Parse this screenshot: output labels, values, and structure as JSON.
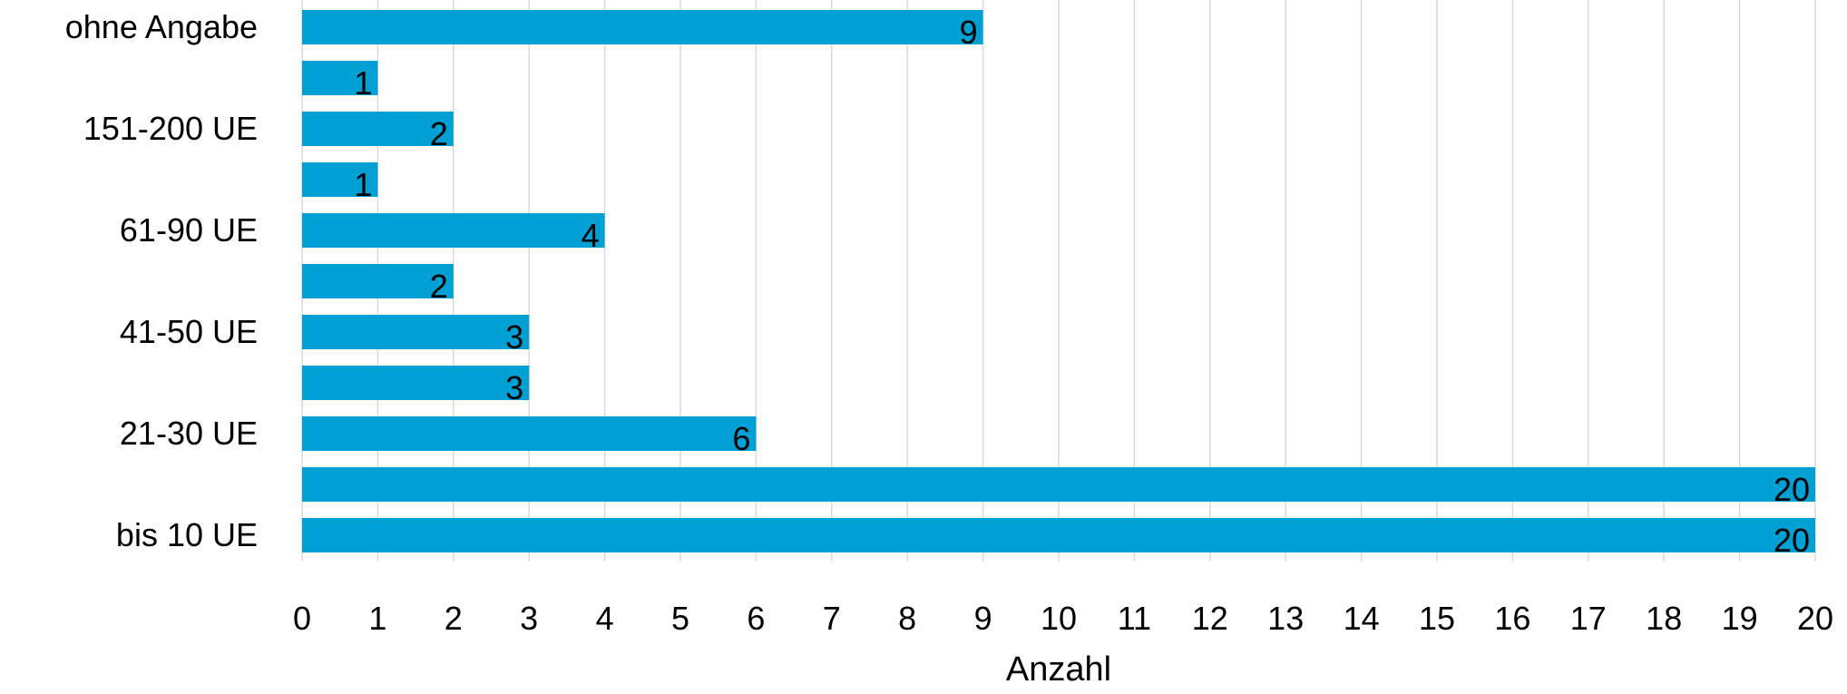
{
  "chart_data": {
    "type": "bar",
    "orientation": "horizontal",
    "title": "",
    "xlabel": "Anzahl",
    "ylabel": "",
    "categories": [
      "ohne Angabe",
      "",
      "151-200 UE",
      "",
      "61-90 UE",
      "",
      "41-50 UE",
      "",
      "21-30 UE",
      "",
      "bis 10 UE"
    ],
    "values": [
      9,
      1,
      2,
      1,
      4,
      2,
      3,
      3,
      6,
      20,
      20
    ],
    "xlim": [
      0,
      20
    ],
    "xticks": [
      "0",
      "1",
      "2",
      "3",
      "4",
      "5",
      "6",
      "7",
      "8",
      "9",
      "10",
      "11",
      "12",
      "13",
      "14",
      "15",
      "16",
      "17",
      "18",
      "19",
      "20"
    ],
    "grid": "vertical",
    "legend": "none",
    "bar_color": "#009fd4",
    "grid_color": "#d9d9d9"
  }
}
